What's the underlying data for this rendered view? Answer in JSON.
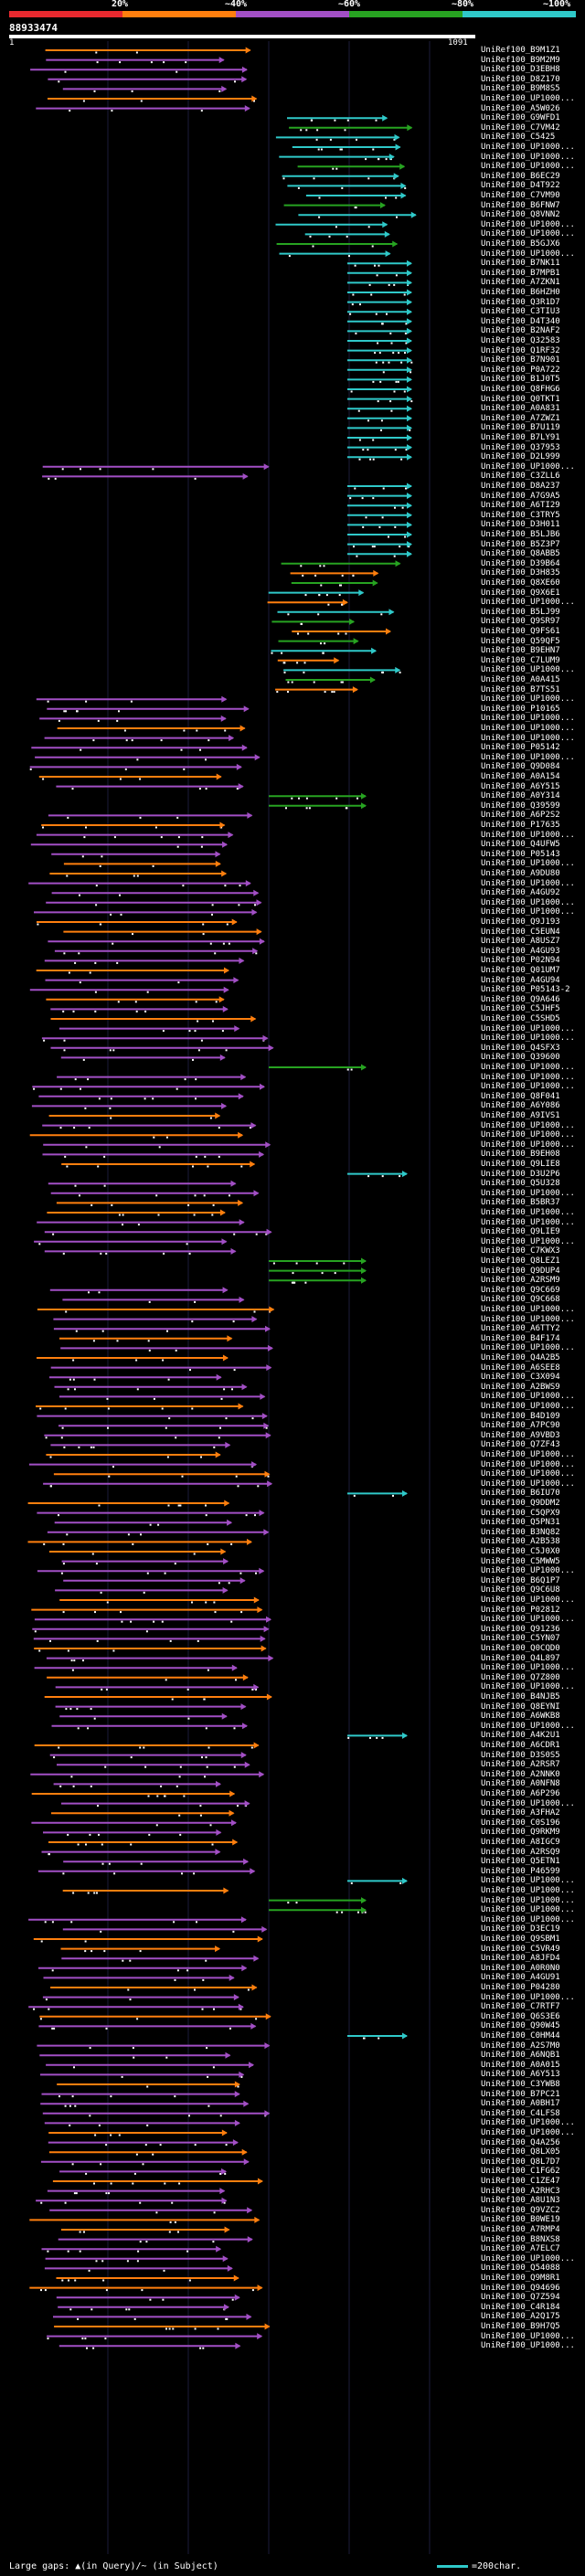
{
  "header": {
    "query_id": "88933474",
    "query_start": "1",
    "query_end": "1091"
  },
  "legend": {
    "labels": [
      "20%",
      "~40%",
      "~60%",
      "~80%",
      "~100%"
    ],
    "colors": [
      "#e8292f",
      "#ff7f0e",
      "#a24fc5",
      "#27a321",
      "#2fc9c9"
    ]
  },
  "footer": {
    "large_gaps": "Large gaps: ▲(in Query)/~ (in Subject)",
    "scale_label": "=200char."
  },
  "hits": [
    "UniRef100_B9M1Z1",
    "UniRef100_B9M2M9",
    "UniRef100_D3EBH8",
    "UniRef100_D8Z170",
    "UniRef100_B9M8S5",
    "UniRef100_UP1000...",
    "UniRef100_A5W026",
    "UniRef100_G9WFD1",
    "UniRef100_C7VM42",
    "UniRef100_C5425",
    "UniRef100_UP1000...",
    "UniRef100_UP1000...",
    "UniRef100_UP1000...",
    "UniRef100_B6EC29",
    "UniRef100_D4T922",
    "UniRef100_C7VM90",
    "UniRef100_B6FNW7",
    "UniRef100_Q8VNN2",
    "UniRef100_UP1000...",
    "UniRef100_UP1000...",
    "UniRef100_B5GJX6",
    "UniRef100_UP1000...",
    "UniRef100_B7NK11",
    "UniRef100_B7MPB1",
    "UniRef100_A7ZKN1",
    "UniRef100_B6HZH0",
    "UniRef100_Q3R1D7",
    "UniRef100_C3TIU3",
    "UniRef100_D4T340",
    "UniRef100_B2NAF2",
    "UniRef100_Q32583",
    "UniRef100_Q1RF32",
    "UniRef100_B7N901",
    "UniRef100_P0A722",
    "UniRef100_B1J0T5",
    "UniRef100_Q8FHG6",
    "UniRef100_Q0TKT1",
    "UniRef100_A0A831",
    "UniRef100_A7ZWZ1",
    "UniRef100_B7U119",
    "UniRef100_B7LY91",
    "UniRef100_Q37953",
    "UniRef100_D2L999",
    "UniRef100_UP1000...",
    "UniRef100_C3ZLL6",
    "UniRef100_D8A237",
    "UniRef100_A7G9A5",
    "UniRef100_A6TI29",
    "UniRef100_C3TRY5",
    "UniRef100_D3H011",
    "UniRef100_B5LJB6",
    "UniRef100_B5Z3P7",
    "UniRef100_Q8ABB5",
    "UniRef100_D39B64",
    "UniRef100_D3H835",
    "UniRef100_Q8XE60",
    "UniRef100_Q9X6E1",
    "UniRef100_UP1000...",
    "UniRef100_B5LJ99",
    "UniRef100_Q9SR97",
    "UniRef100_Q9FS61",
    "UniRef100_Q59QF5",
    "UniRef100_B9EHN7",
    "UniRef100_C7LUM9",
    "UniRef100_UP1000...",
    "UniRef100_A0A415",
    "UniRef100_B7TS51",
    "UniRef100_UP1000...",
    "UniRef100_P10165",
    "UniRef100_UP1000...",
    "UniRef100_UP1000...",
    "UniRef100_UP1000...",
    "UniRef100_P05142",
    "UniRef100_UP1000...",
    "UniRef100_Q9D084",
    "UniRef100_A0A154",
    "UniRef100_A6Y515",
    "UniRef100_A0Y314",
    "UniRef100_Q39599",
    "UniRef100_A6P2S2",
    "UniRef100_P17635",
    "UniRef100_UP1000...",
    "UniRef100_Q4UFW5",
    "UniRef100_P05143",
    "UniRef100_UP1000...",
    "UniRef100_A9DU80",
    "UniRef100_UP1000...",
    "UniRef100_A4GU92",
    "UniRef100_UP1000...",
    "UniRef100_UP1000...",
    "UniRef100_Q9J193",
    "UniRef100_C5EUN4",
    "UniRef100_A8USZ7",
    "UniRef100_A4GU93",
    "UniRef100_P02N94",
    "UniRef100_Q01UM7",
    "UniRef100_A4GU94",
    "UniRef100_P05143-2",
    "UniRef100_Q9A646",
    "UniRef100_C5JHF5",
    "UniRef100_C5SHD5",
    "UniRef100_UP1000...",
    "UniRef100_UP1000...",
    "UniRef100_Q4SFX3",
    "UniRef100_Q39600",
    "UniRef100_UP1000...",
    "UniRef100_UP1000...",
    "UniRef100_UP1000...",
    "UniRef100_Q8F041",
    "UniRef100_A6Y086",
    "UniRef100_A9IVS1",
    "UniRef100_UP1000...",
    "UniRef100_UP1000...",
    "UniRef100_UP1000...",
    "UniRef100_B9EH08",
    "UniRef100_Q9LIE8",
    "UniRef100_D3U2P6",
    "UniRef100_Q5U328",
    "UniRef100_UP1000...",
    "UniRef100_B5BR37",
    "UniRef100_UP1000...",
    "UniRef100_UP1000...",
    "UniRef100_Q9LIE9",
    "UniRef100_UP1000...",
    "UniRef100_C7KWX3",
    "UniRef100_Q8LEZ1",
    "UniRef100_Q9DUP4",
    "UniRef100_A2RSM9",
    "UniRef100_Q9C669",
    "UniRef100_Q9C668",
    "UniRef100_UP1000...",
    "UniRef100_UP1000...",
    "UniRef100_A6TTY2",
    "UniRef100_B4F174",
    "UniRef100_UP1000...",
    "UniRef100_Q4A2B5",
    "UniRef100_A6SEE8",
    "UniRef100_C3X094",
    "UniRef100_A2BWS9",
    "UniRef100_UP1000...",
    "UniRef100_UP1000...",
    "UniRef100_B4D109",
    "UniRef100_A7PC90",
    "UniRef100_A9VBD3",
    "UniRef100_Q7ZF43",
    "UniRef100_UP1000...",
    "UniRef100_UP1000...",
    "UniRef100_UP1000...",
    "UniRef100_UP1000...",
    "UniRef100_B6IU70",
    "UniRef100_Q9DDM2",
    "UniRef100_C5QPX9",
    "UniRef100_Q5PN31",
    "UniRef100_B3NQ82",
    "UniRef100_A2B538",
    "UniRef100_C5J0X0",
    "UniRef100_C5MWW5",
    "UniRef100_UP1000...",
    "UniRef100_B6Q1P7",
    "UniRef100_Q9C6U8",
    "UniRef100_UP1000...",
    "UniRef100_P02812",
    "UniRef100_UP1000...",
    "UniRef100_Q91236",
    "UniRef100_C5YN07",
    "UniRef100_Q0CQD0",
    "UniRef100_Q4L897",
    "UniRef100_UP1000...",
    "UniRef100_Q7Z800",
    "UniRef100_UP1000...",
    "UniRef100_B4NJB5",
    "UniRef100_Q8EYNI",
    "UniRef100_A6WKB8",
    "UniRef100_UP1000...",
    "UniRef100_A4K2U1",
    "UniRef100_A6CDR1",
    "UniRef100_D3S0S5",
    "UniRef100_A2RSR7",
    "UniRef100_A2NNK0",
    "UniRef100_A0NFN8",
    "UniRef100_A6P296",
    "UniRef100_UP1000...",
    "UniRef100_A3FHA2",
    "UniRef100_C0S196",
    "UniRef100_Q9RKM9",
    "UniRef100_A8IGC9",
    "UniRef100_A2RSQ9",
    "UniRef100_Q5ETN1",
    "UniRef100_P46599",
    "UniRef100_UP1000...",
    "UniRef100_UP1000...",
    "UniRef100_UP1000...",
    "UniRef100_UP1000...",
    "UniRef100_UP1000...",
    "UniRef100_D3EC19",
    "UniRef100_Q9SBM1",
    "UniRef100_C5VR49",
    "UniRef100_A8JFD4",
    "UniRef100_A0R0N0",
    "UniRef100_A4GU91",
    "UniRef100_P04280",
    "UniRef100_UP1000...",
    "UniRef100_C7RTF7",
    "UniRef100_Q6S3E6",
    "UniRef100_Q90W45",
    "UniRef100_C0HM44",
    "UniRef100_A2S7M0",
    "UniRef100_A6NQB1",
    "UniRef100_A0A015",
    "UniRef100_A6Y513",
    "UniRef100_C3YWB8",
    "UniRef100_B7PC21",
    "UniRef100_A0BH17",
    "UniRef100_C4LFS8",
    "UniRef100_UP1000...",
    "UniRef100_UP1000...",
    "UniRef100_Q4A256",
    "UniRef100_Q8LX05",
    "UniRef100_Q8L7D7",
    "UniRef100_C1FG62",
    "UniRef100_C1ZE47",
    "UniRef100_A2RHC3",
    "UniRef100_A8U1N3",
    "UniRef100_Q9VZC2",
    "UniRef100_B0WE19",
    "UniRef100_A7RMP4",
    "UniRef100_B8NXS8",
    "UniRef100_A7ELC7",
    "UniRef100_UP1000...",
    "UniRef100_Q54088",
    "UniRef100_Q9M8R1",
    "UniRef100_Q94696",
    "UniRef100_Q7Z594",
    "UniRef100_C4R184",
    "UniRef100_A2Q175",
    "UniRef100_B9H7Q5",
    "UniRef100_UP1000...",
    "UniRef100_UP1000..."
  ]
}
